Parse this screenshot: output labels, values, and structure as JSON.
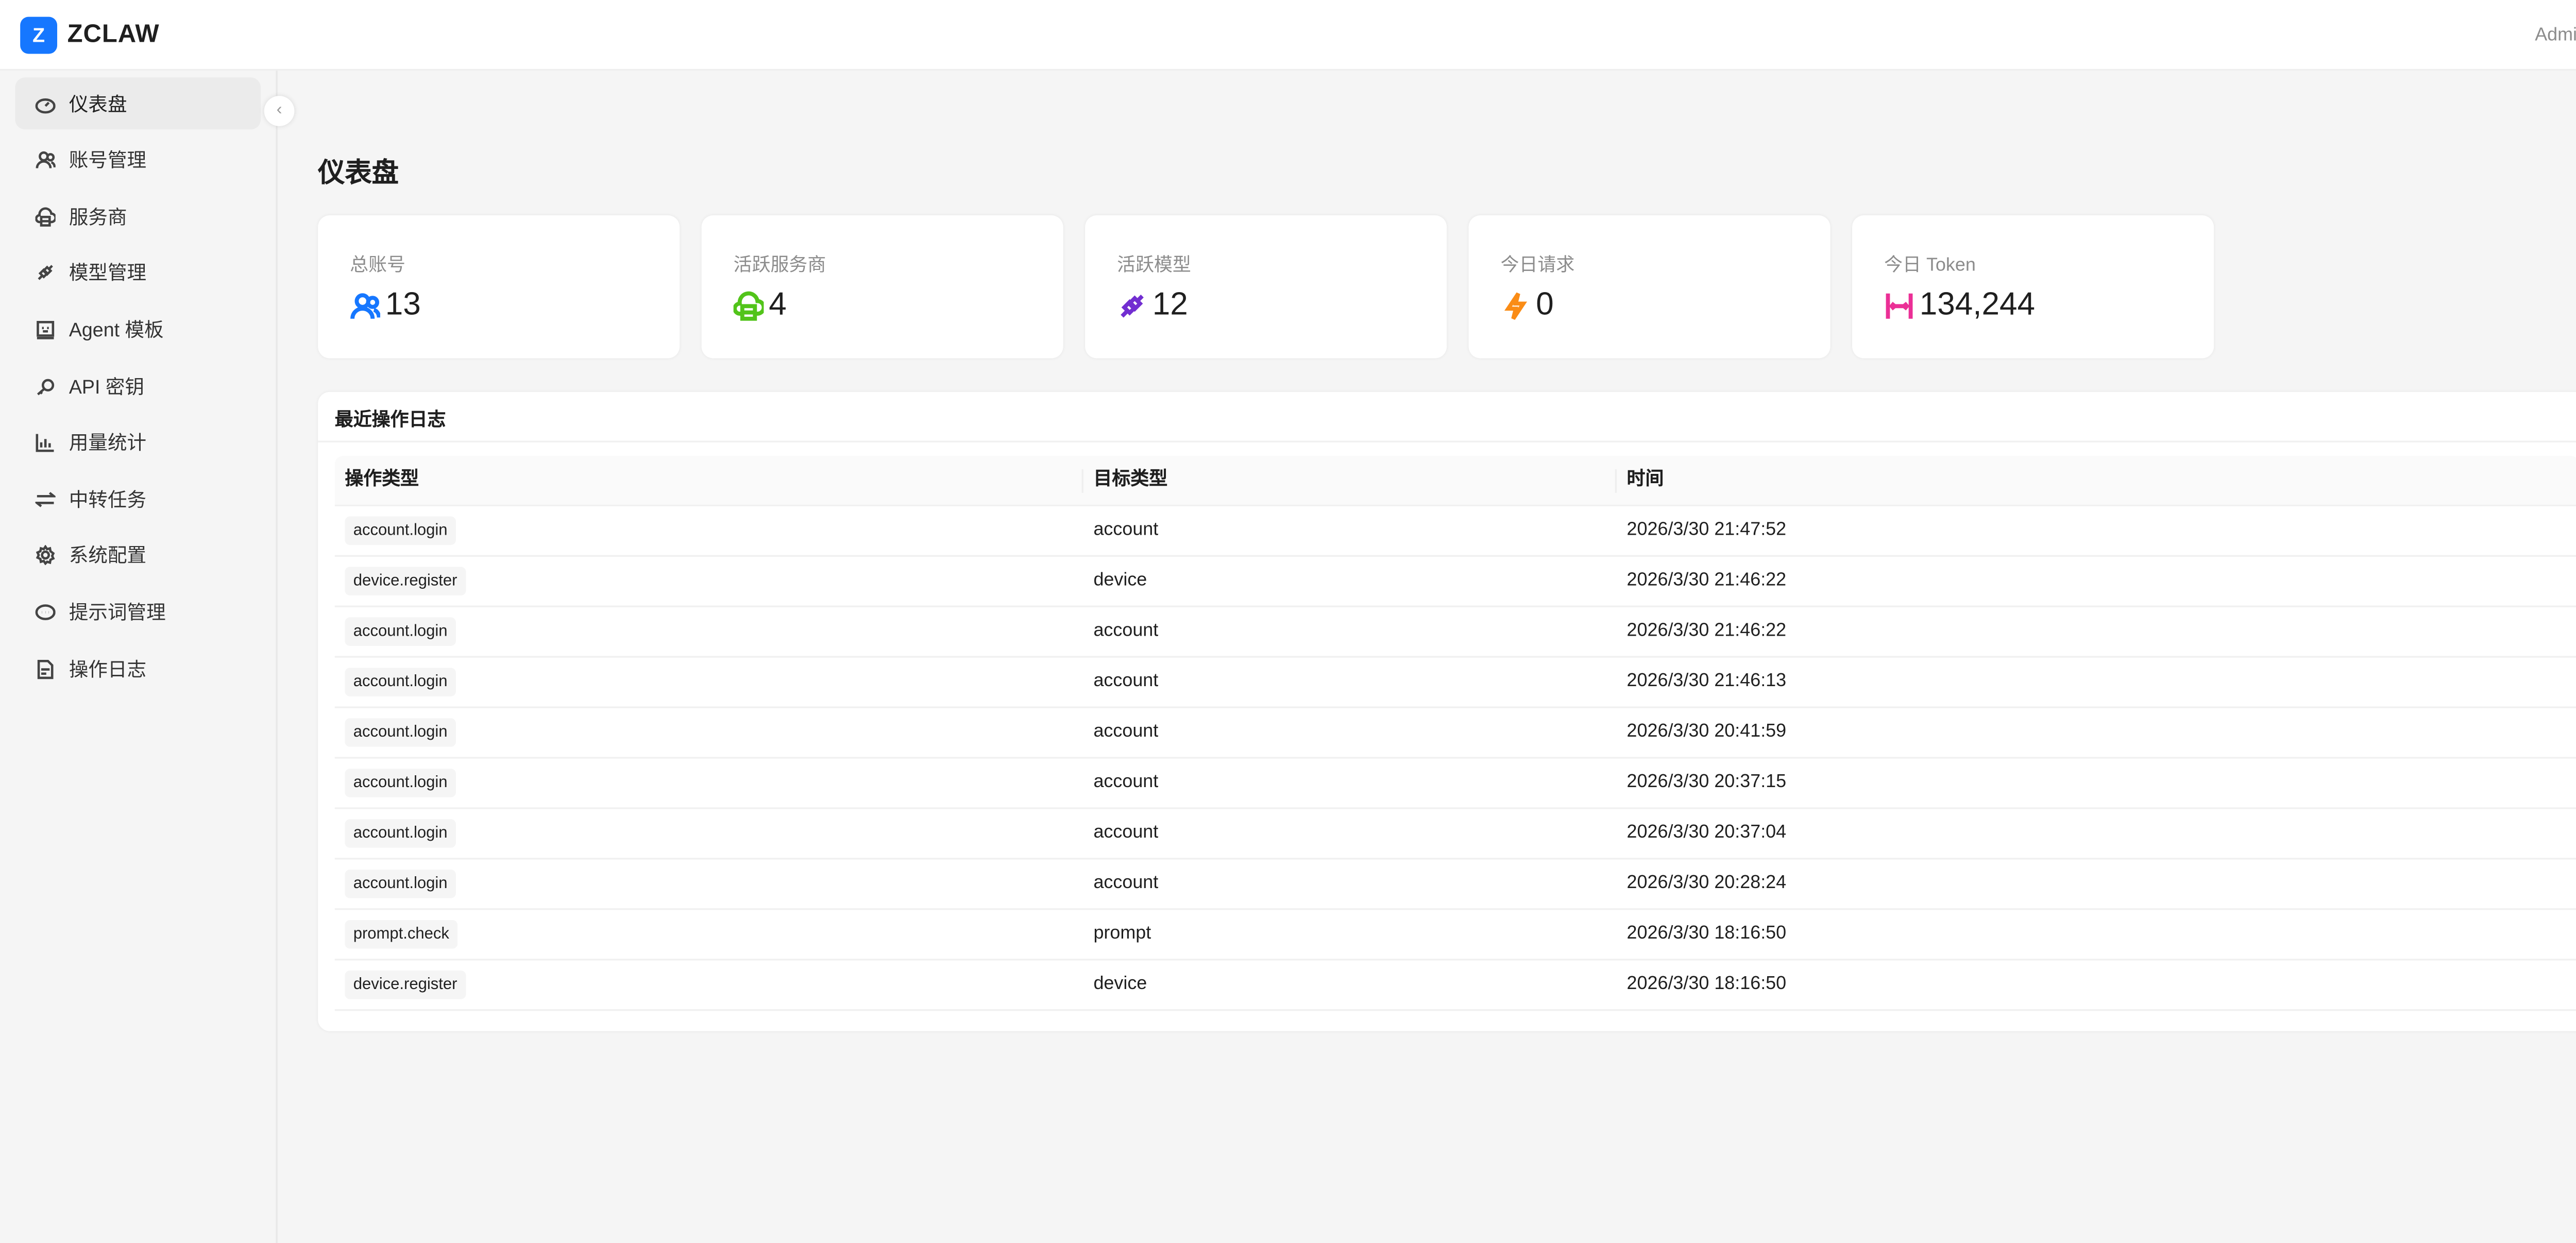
{
  "header": {
    "logo_letter": "Z",
    "brand": "ZCLAW",
    "user": "Admin"
  },
  "sidebar": {
    "collapse_icon": "chevron-left-icon",
    "items": [
      {
        "label": "仪表盘",
        "icon": "dashboard-icon",
        "active": true
      },
      {
        "label": "账号管理",
        "icon": "users-icon"
      },
      {
        "label": "服务商",
        "icon": "cloud-server-icon"
      },
      {
        "label": "模型管理",
        "icon": "plug-icon"
      },
      {
        "label": "Agent 模板",
        "icon": "robot-icon"
      },
      {
        "label": "API 密钥",
        "icon": "key-icon"
      },
      {
        "label": "用量统计",
        "icon": "bar-chart-icon"
      },
      {
        "label": "中转任务",
        "icon": "swap-icon"
      },
      {
        "label": "系统配置",
        "icon": "gear-icon"
      },
      {
        "label": "提示词管理",
        "icon": "message-icon"
      },
      {
        "label": "操作日志",
        "icon": "file-text-icon"
      }
    ]
  },
  "main": {
    "title": "仪表盘",
    "stats": [
      {
        "label": "总账号",
        "value": "13",
        "icon": "users-icon",
        "color": "#1677ff"
      },
      {
        "label": "活跃服务商",
        "value": "4",
        "icon": "cloud-server-icon",
        "color": "#52c41a"
      },
      {
        "label": "活跃模型",
        "value": "12",
        "icon": "plug-icon",
        "color": "#722ed1"
      },
      {
        "label": "今日请求",
        "value": "0",
        "icon": "thunderbolt-icon",
        "color": "#fa8c16"
      },
      {
        "label": "今日 Token",
        "value": "134,244",
        "icon": "column-width-icon",
        "color": "#eb2f96"
      }
    ],
    "log": {
      "title": "最近操作日志",
      "columns": [
        "操作类型",
        "目标类型",
        "时间"
      ],
      "rows": [
        [
          "account.login",
          "account",
          "2026/3/30 21:47:52"
        ],
        [
          "device.register",
          "device",
          "2026/3/30 21:46:22"
        ],
        [
          "account.login",
          "account",
          "2026/3/30 21:46:22"
        ],
        [
          "account.login",
          "account",
          "2026/3/30 21:46:13"
        ],
        [
          "account.login",
          "account",
          "2026/3/30 20:41:59"
        ],
        [
          "account.login",
          "account",
          "2026/3/30 20:37:15"
        ],
        [
          "account.login",
          "account",
          "2026/3/30 20:37:04"
        ],
        [
          "account.login",
          "account",
          "2026/3/30 20:28:24"
        ],
        [
          "prompt.check",
          "prompt",
          "2026/3/30 18:16:50"
        ],
        [
          "device.register",
          "device",
          "2026/3/30 18:16:50"
        ]
      ]
    }
  }
}
